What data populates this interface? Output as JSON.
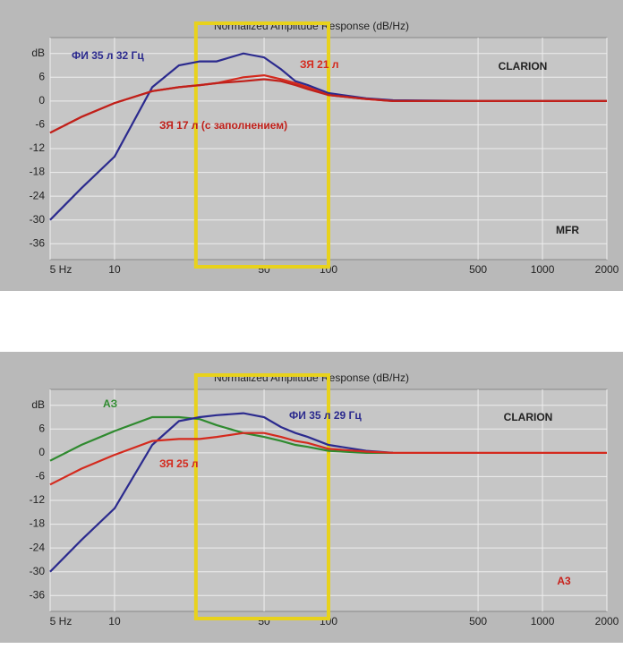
{
  "chart_data": [
    {
      "type": "line",
      "title": "Normalized Amplitude Response (dB/Hz)",
      "xscale": "log",
      "xlim": [
        5,
        2000
      ],
      "xticks": [
        {
          "value": 5,
          "label": "5 Hz"
        },
        10,
        50,
        100,
        500,
        1000,
        2000
      ],
      "ylim": [
        -40,
        16
      ],
      "yticks": [
        {
          "value": 12,
          "label": "dB"
        },
        6,
        0,
        -6,
        -12,
        -18,
        -24,
        -30,
        -36
      ],
      "grid": true,
      "x": [
        5,
        7,
        10,
        15,
        20,
        25,
        30,
        40,
        50,
        60,
        70,
        80,
        100,
        150,
        200,
        500,
        1000,
        2000
      ],
      "series": [
        {
          "name": "ФИ 35 л 32 Гц",
          "color": "#2b2a8e",
          "values": [
            -30,
            -22,
            -14,
            3.5,
            9,
            10,
            10,
            12,
            11,
            8,
            5,
            4,
            2,
            0.7,
            0.2,
            0,
            0,
            0
          ]
        },
        {
          "name": "ЗЯ 21 л",
          "color": "#d42a1e",
          "values": [
            -8,
            -4,
            -0.5,
            2.5,
            3.5,
            4,
            4.5,
            6,
            6.5,
            5.5,
            4.5,
            3.5,
            1.5,
            0.5,
            0,
            0,
            0,
            0
          ]
        },
        {
          "name": "ЗЯ 17 л (с заполнением)",
          "color": "#c0201a",
          "values": [
            -8,
            -4,
            -0.5,
            2.5,
            3.5,
            4,
            4.5,
            5,
            5.5,
            5,
            4,
            3,
            1.5,
            0.5,
            0,
            0,
            0,
            0
          ]
        }
      ],
      "annotations": [
        "CLARION",
        "MFR"
      ],
      "highlight": [
        24,
        100
      ],
      "highlight_color": "#e8d21c"
    },
    {
      "type": "line",
      "title": "Normalized Amplitude Response (dB/Hz)",
      "xscale": "log",
      "xlim": [
        5,
        2000
      ],
      "xticks": [
        {
          "value": 5,
          "label": "5 Hz"
        },
        10,
        50,
        100,
        500,
        1000,
        2000
      ],
      "ylim": [
        -40,
        16
      ],
      "yticks": [
        {
          "value": 12,
          "label": "dB"
        },
        6,
        0,
        -6,
        -12,
        -18,
        -24,
        -30,
        -36
      ],
      "grid": true,
      "x": [
        5,
        7,
        10,
        15,
        20,
        25,
        30,
        40,
        50,
        60,
        70,
        80,
        100,
        150,
        200,
        500,
        1000,
        2000
      ],
      "series": [
        {
          "name": "АЗ",
          "color": "#2f8a2f",
          "values": [
            -2,
            2,
            5.5,
            9,
            9,
            8.5,
            7,
            5,
            4,
            3,
            2,
            1.5,
            0.5,
            0,
            0,
            null,
            null,
            null
          ]
        },
        {
          "name": "ФИ 35 л 29 Гц",
          "color": "#2b2a8e",
          "values": [
            -30,
            -22,
            -14,
            2,
            8,
            9,
            9.5,
            10,
            9,
            6.5,
            5,
            4,
            2,
            0.5,
            0,
            null,
            null,
            null
          ]
        },
        {
          "name": "ЗЯ 25 л",
          "color": "#d42a1e",
          "values": [
            -8,
            -4,
            -0.5,
            3,
            3.5,
            3.5,
            4,
            5,
            5,
            4,
            3,
            2.5,
            1,
            0.3,
            0,
            0,
            0,
            0
          ]
        }
      ],
      "annotations": [
        "CLARION",
        "A3"
      ],
      "highlight": [
        24,
        100
      ],
      "highlight_color": "#e8d21c"
    }
  ]
}
